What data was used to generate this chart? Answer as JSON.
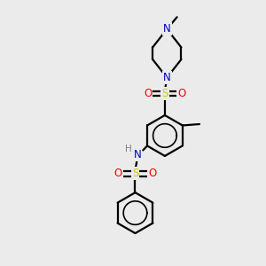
{
  "background_color": "#ebebeb",
  "bond_color": "#000000",
  "atom_colors": {
    "N": "#0000cc",
    "S": "#cccc00",
    "O": "#ff0000",
    "C": "#000000",
    "H": "#808080"
  },
  "figsize": [
    3.0,
    3.0
  ],
  "dpi": 100,
  "xlim": [
    0,
    10
  ],
  "ylim": [
    0,
    10
  ]
}
